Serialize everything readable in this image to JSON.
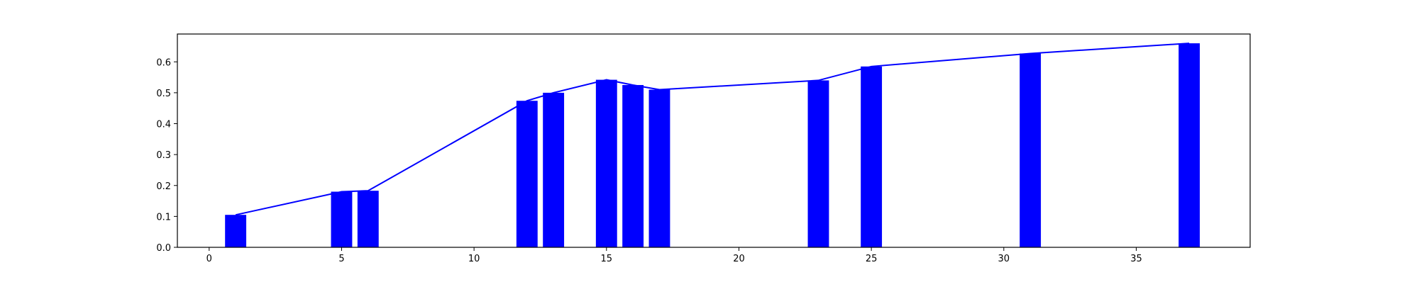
{
  "chart_data": {
    "type": "bar",
    "title": "",
    "xlabel": "",
    "ylabel": "",
    "xlim": [
      -1.2,
      39.3
    ],
    "ylim": [
      0,
      0.69
    ],
    "grid": false,
    "x_ticks": [
      0,
      5,
      10,
      15,
      20,
      25,
      30,
      35
    ],
    "y_ticks": [
      0.0,
      0.1,
      0.2,
      0.3,
      0.4,
      0.5,
      0.6
    ],
    "x_tick_labels": [
      "0",
      "5",
      "10",
      "15",
      "20",
      "25",
      "30",
      "35"
    ],
    "y_tick_labels": [
      "0.0",
      "0.1",
      "0.2",
      "0.3",
      "0.4",
      "0.5",
      "0.6"
    ],
    "bar_width": 0.8,
    "x": [
      1,
      5,
      6,
      12,
      13,
      15,
      16,
      17,
      23,
      25,
      31,
      37
    ],
    "values": [
      0.105,
      0.18,
      0.183,
      0.474,
      0.5,
      0.542,
      0.525,
      0.51,
      0.54,
      0.585,
      0.627,
      0.66
    ],
    "line": {
      "x": [
        1,
        5,
        6,
        12,
        13,
        15,
        16,
        17,
        23,
        25,
        31,
        37
      ],
      "y": [
        0.105,
        0.18,
        0.183,
        0.474,
        0.5,
        0.542,
        0.525,
        0.51,
        0.54,
        0.585,
        0.627,
        0.66
      ]
    },
    "colors": {
      "bar": "#0000ff",
      "line": "#0000ff",
      "axis": "#000000"
    }
  }
}
